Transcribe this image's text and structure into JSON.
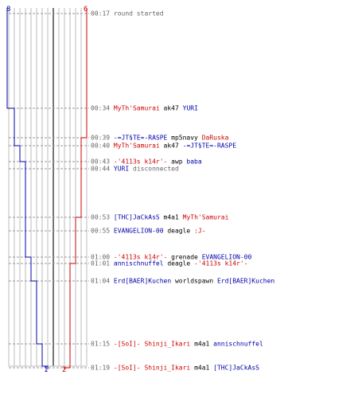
{
  "colors": {
    "blue": "#0000aa",
    "red": "#cc0000",
    "grey": "#666666",
    "black": "#000000",
    "grid": "#bbbbbb",
    "center": "#777777",
    "dash": "#999999"
  },
  "team_blue": {
    "start_count": "8",
    "end_count": "1"
  },
  "team_red": {
    "start_count": "6",
    "end_count": "2"
  },
  "events": [
    {
      "time": "00:17",
      "parts": [
        {
          "text": "round started",
          "color": "grey"
        }
      ]
    },
    {
      "time": "00:34",
      "parts": [
        {
          "text": "MyTh'Samurai",
          "color": "red"
        },
        {
          "text": "ak47",
          "color": "black"
        },
        {
          "text": "YURI",
          "color": "blue"
        }
      ]
    },
    {
      "time": "00:39",
      "parts": [
        {
          "text": "-=JT§TE=-RASPE",
          "color": "blue"
        },
        {
          "text": "mp5navy",
          "color": "black"
        },
        {
          "text": "DaRuska",
          "color": "red"
        }
      ]
    },
    {
      "time": "00:40",
      "parts": [
        {
          "text": "MyTh'Samurai",
          "color": "red"
        },
        {
          "text": "ak47",
          "color": "black"
        },
        {
          "text": "-=JT§TE=-RASPE",
          "color": "blue"
        }
      ]
    },
    {
      "time": "00:43",
      "parts": [
        {
          "text": "-'4113s k14r'-",
          "color": "red"
        },
        {
          "text": "awp",
          "color": "black"
        },
        {
          "text": "baba",
          "color": "blue"
        }
      ]
    },
    {
      "time": "00:44",
      "parts": [
        {
          "text": "YURI",
          "color": "blue"
        },
        {
          "text": "disconnected",
          "color": "grey"
        }
      ]
    },
    {
      "time": "00:53",
      "parts": [
        {
          "text": "[THC]JaCkAsS",
          "color": "blue"
        },
        {
          "text": "m4a1",
          "color": "black"
        },
        {
          "text": "MyTh'Samurai",
          "color": "red"
        }
      ]
    },
    {
      "time": "00:55",
      "parts": [
        {
          "text": "EVANGELION-00",
          "color": "blue"
        },
        {
          "text": "deagle",
          "color": "black"
        },
        {
          "text": ":J-",
          "color": "red"
        }
      ]
    },
    {
      "time": "01:00",
      "parts": [
        {
          "text": "-'4113s k14r'-",
          "color": "red"
        },
        {
          "text": "grenade",
          "color": "black"
        },
        {
          "text": "EVANGELION-00",
          "color": "blue"
        }
      ]
    },
    {
      "time": "01:01",
      "parts": [
        {
          "text": "annischnuffel",
          "color": "blue"
        },
        {
          "text": "deagle",
          "color": "black"
        },
        {
          "text": "-'4113s k14r'-",
          "color": "red"
        }
      ]
    },
    {
      "time": "01:04",
      "parts": [
        {
          "text": "Erd[BAER]Kuchen",
          "color": "blue"
        },
        {
          "text": "worldspawn",
          "color": "black"
        },
        {
          "text": "Erd[BAER]Kuchen",
          "color": "blue"
        }
      ]
    },
    {
      "time": "01:15",
      "parts": [
        {
          "text": "-[SoI]- Shinji_Ikari",
          "color": "red"
        },
        {
          "text": "m4a1",
          "color": "black"
        },
        {
          "text": "annischnuffel",
          "color": "blue"
        }
      ]
    },
    {
      "time": "01:19",
      "parts": [
        {
          "text": "-[SoI]- Shinji_Ikari",
          "color": "red"
        },
        {
          "text": "m4a1",
          "color": "black"
        },
        {
          "text": "[THC]JaCkAsS",
          "color": "blue"
        }
      ]
    }
  ]
}
